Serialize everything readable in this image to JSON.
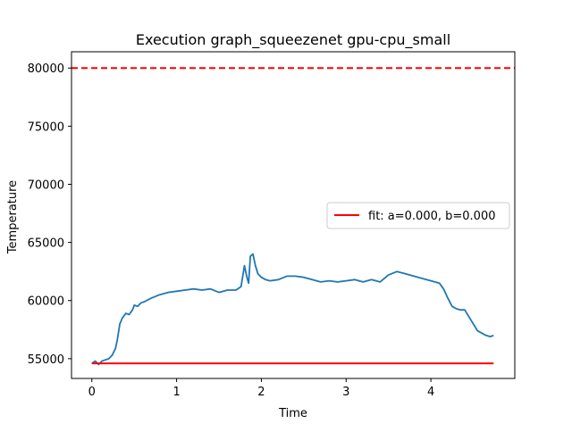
{
  "chart_data": {
    "type": "line",
    "title": "Execution graph_squeezenet gpu-cpu_small",
    "xlabel": "Time",
    "ylabel": "Temperature",
    "xlim": [
      -0.24,
      4.99
    ],
    "ylim": [
      53300,
      81400
    ],
    "x_ticks": [
      0,
      1,
      2,
      3,
      4
    ],
    "x_tick_labels": [
      "0",
      "1",
      "2",
      "3",
      "4"
    ],
    "y_ticks": [
      55000,
      60000,
      65000,
      70000,
      75000,
      80000
    ],
    "y_tick_labels": [
      "55000",
      "60000",
      "65000",
      "70000",
      "75000",
      "80000"
    ],
    "grid": false,
    "legend_position": "center-right",
    "reference_line": {
      "y": 80000,
      "color": "#ff0000",
      "style": "dashed"
    },
    "series": [
      {
        "color": "#1f77b4",
        "x": [
          0.0,
          0.04,
          0.08,
          0.12,
          0.16,
          0.2,
          0.24,
          0.28,
          0.3,
          0.33,
          0.36,
          0.4,
          0.44,
          0.48,
          0.5,
          0.54,
          0.58,
          0.62,
          0.7,
          0.8,
          0.9,
          1.0,
          1.1,
          1.2,
          1.3,
          1.4,
          1.5,
          1.6,
          1.7,
          1.76,
          1.8,
          1.83,
          1.85,
          1.87,
          1.9,
          1.93,
          1.96,
          2.0,
          2.05,
          2.1,
          2.2,
          2.3,
          2.4,
          2.5,
          2.6,
          2.7,
          2.8,
          2.9,
          3.0,
          3.1,
          3.2,
          3.3,
          3.4,
          3.5,
          3.6,
          3.7,
          3.8,
          3.9,
          4.0,
          4.1,
          4.15,
          4.2,
          4.25,
          4.3,
          4.35,
          4.4,
          4.5,
          4.55,
          4.6,
          4.65,
          4.7,
          4.74
        ],
        "y": [
          54600,
          54800,
          54500,
          54800,
          54900,
          55000,
          55300,
          55900,
          56600,
          58000,
          58500,
          58900,
          58800,
          59200,
          59600,
          59500,
          59800,
          59900,
          60200,
          60500,
          60700,
          60800,
          60900,
          61000,
          60900,
          61000,
          60700,
          60900,
          60900,
          61200,
          63000,
          62000,
          61500,
          63800,
          64000,
          63000,
          62300,
          62000,
          61800,
          61700,
          61800,
          62100,
          62100,
          62000,
          61800,
          61600,
          61700,
          61600,
          61700,
          61800,
          61600,
          61800,
          61600,
          62200,
          62500,
          62300,
          62100,
          61900,
          61700,
          61500,
          61000,
          60200,
          59500,
          59300,
          59200,
          59200,
          58000,
          57400,
          57200,
          57000,
          56900,
          57000
        ]
      }
    ],
    "fit": {
      "label": "fit: a=0.000, b=0.000",
      "color": "#ff0000",
      "x": [
        0.0,
        4.74
      ],
      "y": [
        54600,
        54600
      ]
    }
  }
}
